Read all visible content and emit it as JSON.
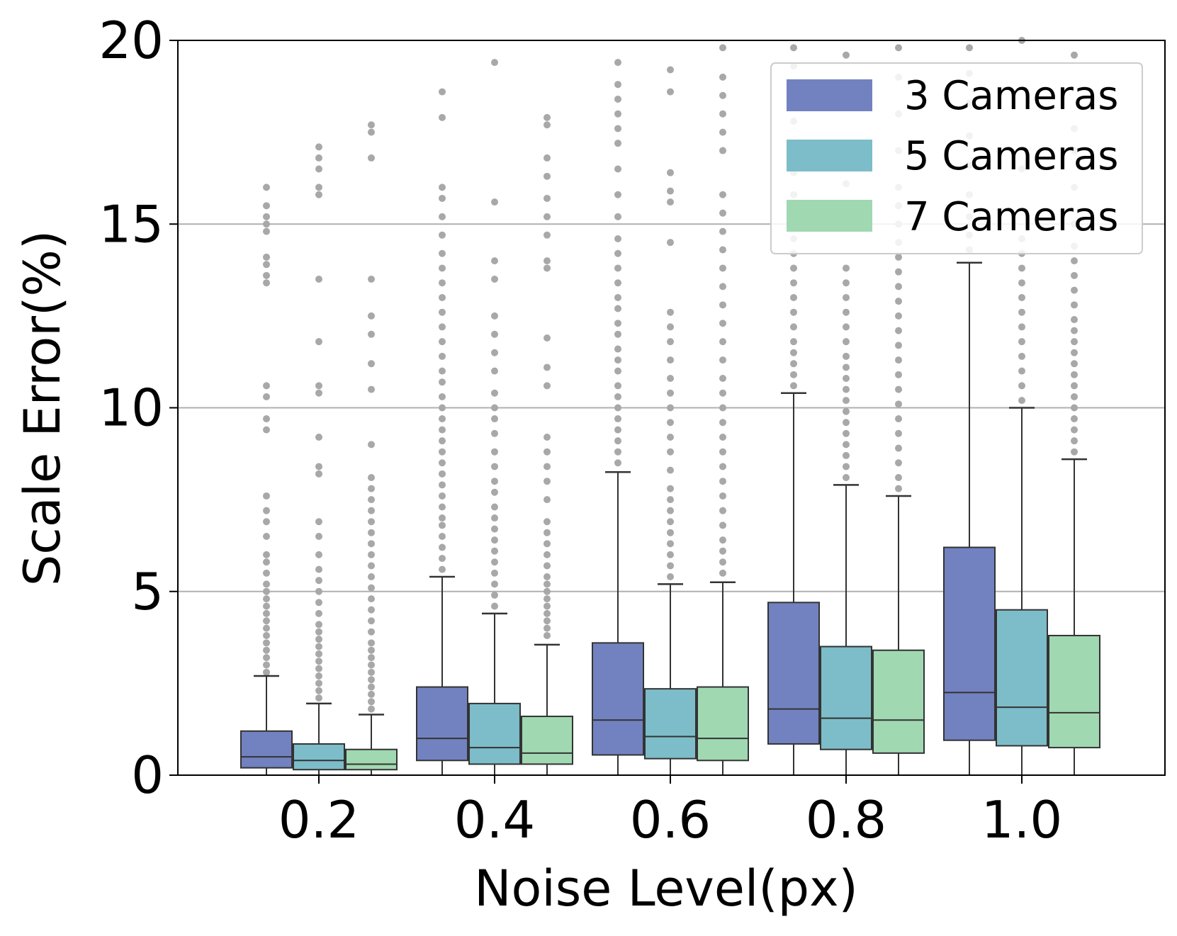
{
  "chart_data": {
    "type": "boxplot",
    "title": "",
    "xlabel": "Noise Level(px)",
    "ylabel": "Scale Error(%)",
    "ylim": [
      0,
      20
    ],
    "yticks": [
      "0",
      "5",
      "10",
      "15",
      "20"
    ],
    "categories": [
      "0.2",
      "0.4",
      "0.6",
      "0.8",
      "1.0"
    ],
    "grid": "horizontal",
    "legend_position": "top-right",
    "series": [
      {
        "name": "3 Cameras",
        "color": "#7282c0",
        "boxes": [
          {
            "whislo": 0,
            "q1": 0.2,
            "med": 0.5,
            "q3": 1.2,
            "whishi": 2.7
          },
          {
            "whislo": 0,
            "q1": 0.4,
            "med": 1.0,
            "q3": 2.4,
            "whishi": 5.4
          },
          {
            "whislo": 0,
            "q1": 0.55,
            "med": 1.5,
            "q3": 3.6,
            "whishi": 8.25
          },
          {
            "whislo": 0,
            "q1": 0.85,
            "med": 1.8,
            "q3": 4.7,
            "whishi": 10.4
          },
          {
            "whislo": 0,
            "q1": 0.95,
            "med": 2.25,
            "q3": 6.2,
            "whishi": 13.95
          }
        ],
        "fliers": [
          [
            2.8,
            3.0,
            3.2,
            3.4,
            3.6,
            3.8,
            4.0,
            4.2,
            4.4,
            4.6,
            4.8,
            5.0,
            5.2,
            5.5,
            5.8,
            6.0,
            6.5,
            6.9,
            7.2,
            7.6,
            9.4,
            9.7,
            10.3,
            10.6,
            13.4,
            13.6,
            13.9,
            14.1,
            14.8,
            15.0,
            15.2,
            15.5,
            16.0
          ],
          [
            5.6,
            5.9,
            6.2,
            6.5,
            6.8,
            7.0,
            7.3,
            7.6,
            7.9,
            8.2,
            8.5,
            8.8,
            9.1,
            9.4,
            9.7,
            10.0,
            10.3,
            10.7,
            11.0,
            11.4,
            11.8,
            12.2,
            12.6,
            13.0,
            13.4,
            13.8,
            14.2,
            14.7,
            15.2,
            15.7,
            16.0,
            17.9,
            18.6
          ],
          [
            8.5,
            8.8,
            9.1,
            9.4,
            9.7,
            10.0,
            10.3,
            10.6,
            11.0,
            11.3,
            11.6,
            12.0,
            12.3,
            12.7,
            13.0,
            13.4,
            13.8,
            14.2,
            14.6,
            15.2,
            15.8,
            16.5,
            17.2,
            17.6,
            18.0,
            18.4,
            18.8,
            19.4
          ],
          [
            10.6,
            10.9,
            11.2,
            11.5,
            11.8,
            12.2,
            12.6,
            13.0,
            13.4,
            13.8,
            14.2,
            14.6,
            15.0,
            15.4,
            15.8,
            16.4,
            17.0,
            17.8,
            18.6,
            19.3,
            19.8
          ],
          [
            14.3,
            14.7,
            15.2,
            15.8,
            16.6,
            17.4,
            18.3,
            19.1,
            19.8
          ]
        ]
      },
      {
        "name": "5 Cameras",
        "color": "#7dbdc9",
        "boxes": [
          {
            "whislo": 0,
            "q1": 0.15,
            "med": 0.4,
            "q3": 0.85,
            "whishi": 1.95
          },
          {
            "whislo": 0,
            "q1": 0.3,
            "med": 0.75,
            "q3": 1.95,
            "whishi": 4.4
          },
          {
            "whislo": 0,
            "q1": 0.45,
            "med": 1.05,
            "q3": 2.35,
            "whishi": 5.2
          },
          {
            "whislo": 0,
            "q1": 0.7,
            "med": 1.55,
            "q3": 3.5,
            "whishi": 7.9
          },
          {
            "whislo": 0,
            "q1": 0.8,
            "med": 1.85,
            "q3": 4.5,
            "whishi": 10.0
          }
        ],
        "fliers": [
          [
            2.1,
            2.3,
            2.5,
            2.7,
            2.9,
            3.1,
            3.3,
            3.5,
            3.7,
            3.9,
            4.1,
            4.4,
            4.7,
            5.0,
            5.3,
            5.6,
            6.0,
            6.5,
            6.9,
            8.2,
            8.4,
            9.2,
            10.4,
            10.6,
            11.8,
            13.5,
            15.8,
            16.0,
            16.5,
            16.8,
            17.1
          ],
          [
            4.6,
            4.9,
            5.2,
            5.5,
            5.8,
            6.1,
            6.4,
            6.7,
            7.0,
            7.3,
            7.7,
            8.0,
            8.4,
            8.8,
            9.3,
            9.7,
            10.0,
            10.4,
            11.0,
            11.5,
            12.0,
            12.5,
            13.5,
            14.0,
            15.6,
            19.4
          ],
          [
            5.4,
            5.7,
            6.0,
            6.3,
            6.6,
            6.9,
            7.2,
            7.5,
            7.8,
            8.3,
            8.8,
            9.2,
            9.6,
            10.0,
            10.4,
            10.8,
            11.3,
            11.8,
            12.2,
            12.6,
            14.5,
            15.6,
            15.9,
            16.4,
            18.6,
            19.2
          ],
          [
            8.1,
            8.4,
            8.7,
            9.0,
            9.3,
            9.6,
            9.9,
            10.2,
            10.5,
            10.8,
            11.1,
            11.4,
            11.8,
            12.2,
            12.6,
            13.0,
            13.4,
            13.8,
            16.1,
            19.6
          ],
          [
            10.2,
            10.6,
            11.0,
            11.4,
            11.8,
            12.2,
            12.6,
            13.0,
            13.4,
            13.8,
            14.2,
            14.6,
            16.5,
            20.0
          ]
        ]
      },
      {
        "name": "7 Cameras",
        "color": "#a0d8b2",
        "boxes": [
          {
            "whislo": 0,
            "q1": 0.15,
            "med": 0.3,
            "q3": 0.7,
            "whishi": 1.65
          },
          {
            "whislo": 0,
            "q1": 0.3,
            "med": 0.6,
            "q3": 1.6,
            "whishi": 3.55
          },
          {
            "whislo": 0,
            "q1": 0.4,
            "med": 1.0,
            "q3": 2.4,
            "whishi": 5.25
          },
          {
            "whislo": 0,
            "q1": 0.6,
            "med": 1.5,
            "q3": 3.4,
            "whishi": 7.6
          },
          {
            "whislo": 0,
            "q1": 0.75,
            "med": 1.7,
            "q3": 3.8,
            "whishi": 8.6
          }
        ],
        "fliers": [
          [
            1.8,
            2.0,
            2.2,
            2.4,
            2.6,
            2.8,
            3.0,
            3.2,
            3.4,
            3.6,
            3.9,
            4.2,
            4.5,
            4.8,
            5.1,
            5.4,
            5.7,
            6.0,
            6.3,
            6.6,
            6.9,
            7.2,
            7.5,
            7.8,
            8.1,
            9.0,
            10.5,
            11.2,
            12.0,
            12.5,
            13.5,
            16.8,
            17.5,
            17.7
          ],
          [
            3.8,
            4.0,
            4.2,
            4.4,
            4.6,
            4.8,
            5.0,
            5.2,
            5.4,
            5.7,
            6.0,
            6.3,
            6.6,
            6.9,
            7.5,
            8.0,
            8.4,
            8.8,
            9.2,
            10.6,
            11.1,
            11.9,
            13.8,
            14.0,
            14.7,
            15.2,
            15.7,
            16.3,
            16.8,
            17.7,
            17.9
          ],
          [
            5.5,
            5.8,
            6.1,
            6.4,
            6.8,
            7.2,
            7.6,
            8.0,
            8.4,
            8.8,
            9.2,
            9.6,
            10.0,
            10.4,
            10.8,
            11.3,
            11.8,
            12.3,
            12.8,
            13.3,
            13.8,
            14.3,
            14.8,
            15.3,
            15.8,
            17.0,
            17.5,
            18.0,
            18.5,
            19.0,
            19.8
          ],
          [
            7.8,
            8.1,
            8.5,
            8.9,
            9.3,
            9.7,
            10.1,
            10.5,
            10.9,
            11.3,
            11.7,
            12.1,
            12.5,
            12.9,
            13.3,
            13.7,
            14.1,
            14.5,
            15.0,
            15.5,
            16.0,
            17.0,
            18.0,
            19.0,
            19.8
          ],
          [
            8.8,
            9.1,
            9.4,
            9.7,
            10.0,
            10.3,
            10.6,
            10.9,
            11.2,
            11.5,
            11.8,
            12.1,
            12.4,
            12.8,
            13.2,
            13.6,
            14.0,
            14.4,
            15.0,
            16.0,
            17.0,
            17.6,
            19.6
          ]
        ]
      }
    ]
  }
}
